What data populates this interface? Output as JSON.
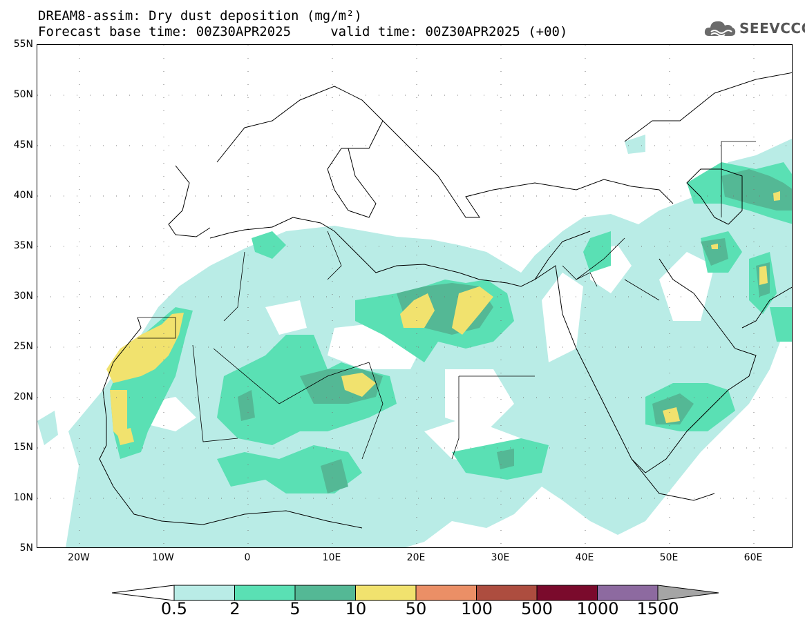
{
  "title": {
    "line1": "DREAM8-assim: Dry dust deposition (mg/m²)",
    "line2": "Forecast base time: 00Z30APR2025     valid time: 00Z30APR2025 (+00)"
  },
  "logo": {
    "text": "SEEVCCC",
    "icon": "cloud-logo-icon"
  },
  "axes": {
    "lat_labels": [
      "55N",
      "50N",
      "45N",
      "40N",
      "35N",
      "30N",
      "25N",
      "20N",
      "15N",
      "10N",
      "5N"
    ],
    "lon_labels": [
      "20W",
      "10W",
      "0",
      "10E",
      "20E",
      "30E",
      "40E",
      "50E",
      "60E"
    ],
    "lat_range": [
      5,
      55
    ],
    "lon_range": [
      -25,
      65
    ]
  },
  "colorbar": {
    "levels": [
      "0.5",
      "2",
      "5",
      "10",
      "50",
      "100",
      "500",
      "1000",
      "1500"
    ],
    "colors": [
      "#ffffff",
      "#b9ece6",
      "#5ae0b4",
      "#54b895",
      "#f1e26e",
      "#eb8f66",
      "#ad4d3f",
      "#7a0a2c",
      "#8d6aa0",
      "#a5a5a5"
    ]
  }
}
